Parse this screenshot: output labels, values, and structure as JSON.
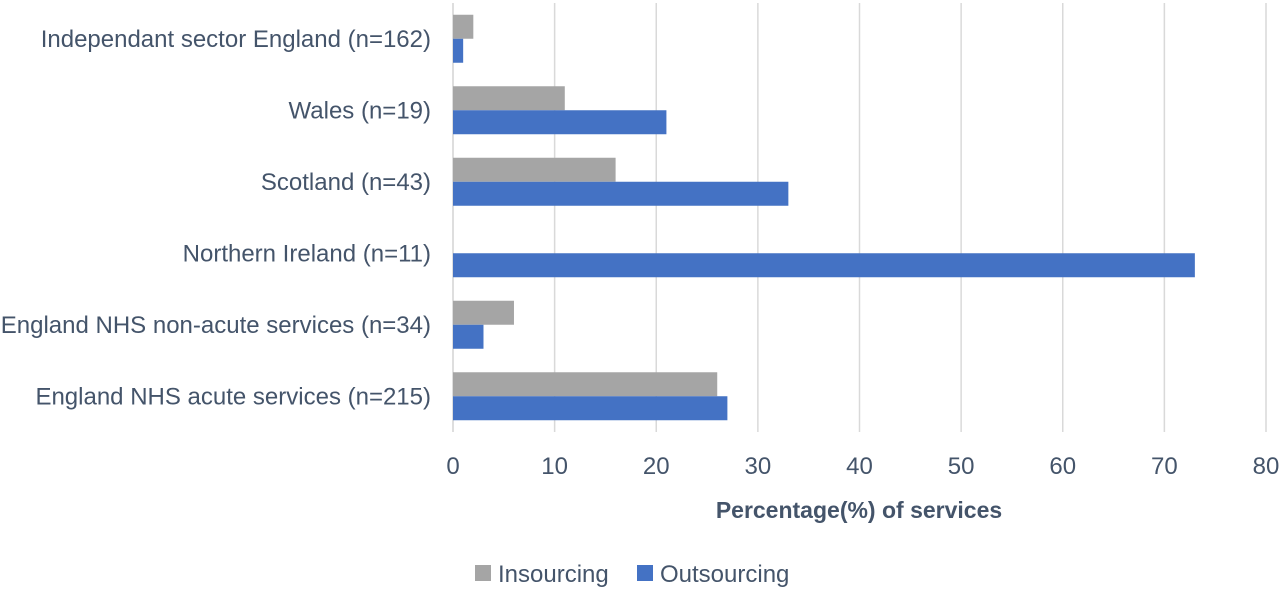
{
  "chart_data": {
    "type": "bar",
    "orientation": "horizontal",
    "categories": [
      "England NHS acute services (n=215)",
      "England NHS non-acute services (n=34)",
      "Northern Ireland (n=11)",
      "Scotland (n=43)",
      "Wales (n=19)",
      "Independant sector England (n=162)"
    ],
    "series": [
      {
        "name": "Insourcing",
        "color": "#a5a5a5",
        "values": [
          26,
          6,
          0,
          16,
          11,
          2
        ]
      },
      {
        "name": "Outsourcing",
        "color": "#4472c4",
        "values": [
          27,
          3,
          73,
          33,
          21,
          1
        ]
      }
    ],
    "xlabel": "Percentage(%) of services",
    "ylabel": "",
    "xlim": [
      0,
      80
    ],
    "xticks": [
      "0",
      "10",
      "20",
      "30",
      "40",
      "50",
      "60",
      "70",
      "80"
    ],
    "grid": true,
    "legend_position": "bottom"
  }
}
